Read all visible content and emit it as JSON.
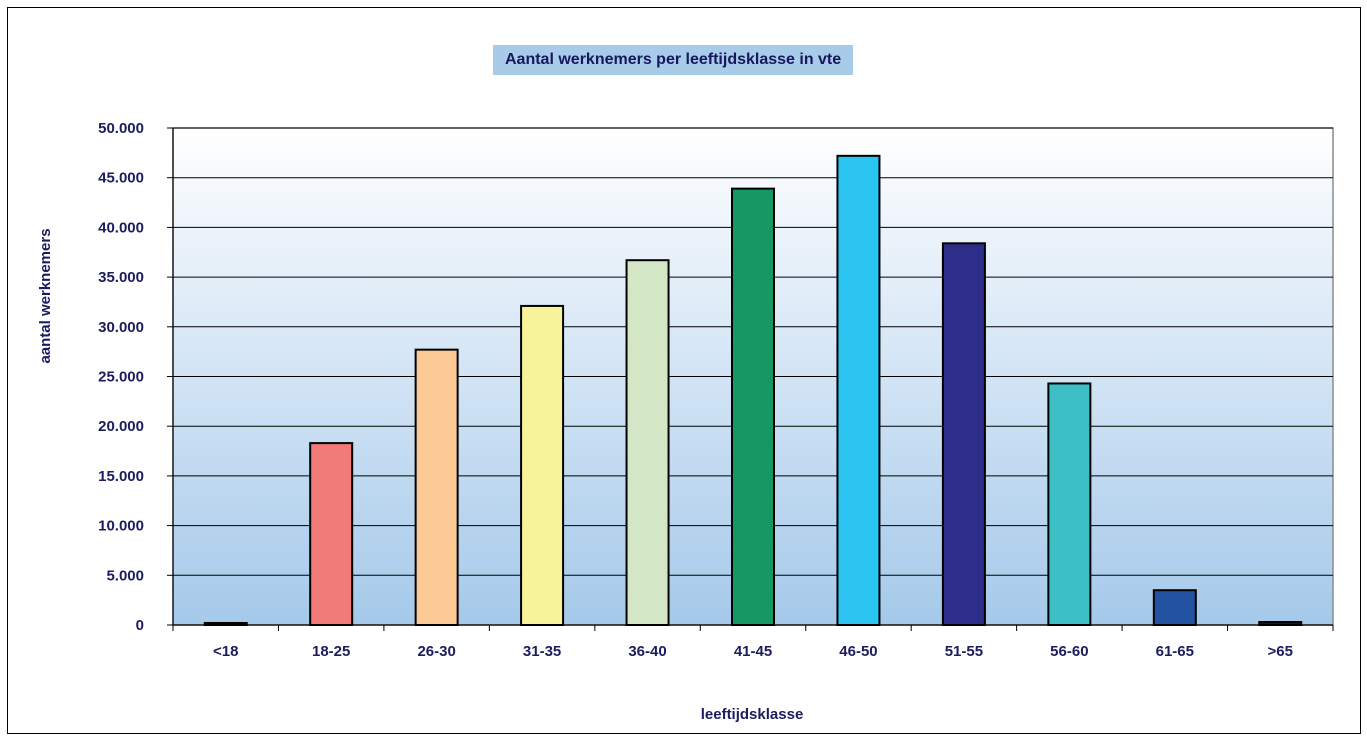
{
  "chart_data": {
    "type": "bar",
    "title": "Aantal werknemers per leeftijdsklasse in vte",
    "xlabel": "leeftijdsklasse",
    "ylabel": "aantal werknemers",
    "ylim": [
      0,
      50000
    ],
    "y_ticks": [
      "0",
      "5.000",
      "10.000",
      "15.000",
      "20.000",
      "25.000",
      "30.000",
      "35.000",
      "40.000",
      "45.000",
      "50.000"
    ],
    "categories": [
      "<18",
      "18-25",
      "26-30",
      "31-35",
      "36-40",
      "41-45",
      "46-50",
      "51-55",
      "56-60",
      "61-65",
      ">65"
    ],
    "values": [
      100,
      18300,
      27700,
      32100,
      36700,
      43900,
      47200,
      38400,
      24300,
      3500,
      300
    ],
    "colors": [
      "#1a1a1a",
      "#f07b78",
      "#fdc994",
      "#f7f39a",
      "#d3e7c6",
      "#179862",
      "#2cc5f2",
      "#2c2e8a",
      "#3cc0c5",
      "#2452a3",
      "#1a1a1a"
    ],
    "grid": true,
    "legend": "none"
  }
}
